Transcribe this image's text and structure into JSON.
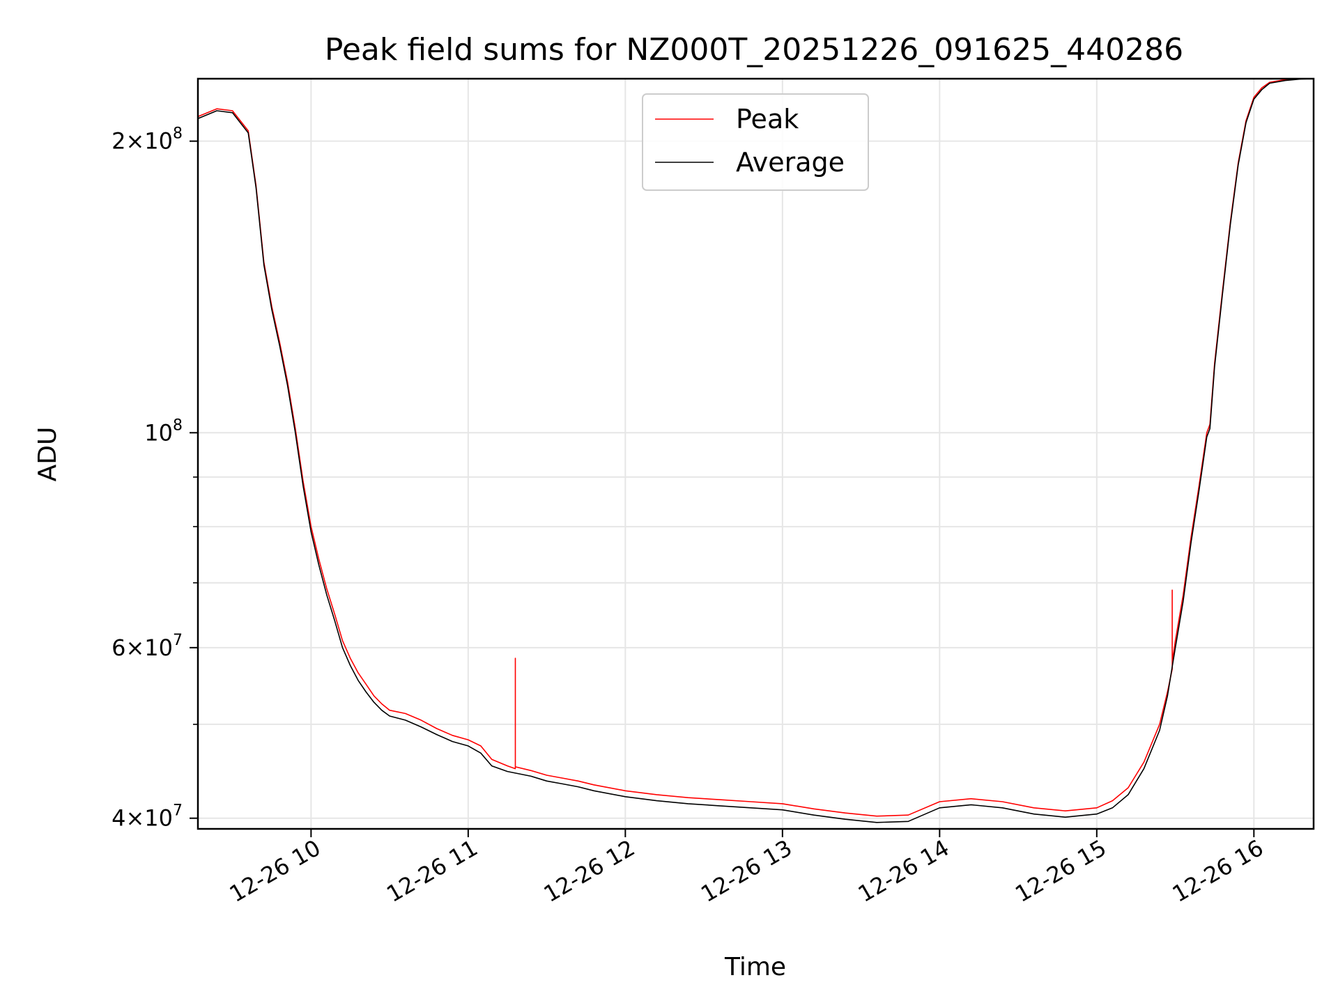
{
  "chart_data": {
    "type": "line",
    "title": "Peak field sums for NZ000T_20251226_091625_440286",
    "xlabel": "Time",
    "ylabel": "ADU",
    "yscale": "log",
    "grid": true,
    "legend_position": "top-center",
    "xlim": [
      9.28,
      16.38
    ],
    "ylim": [
      39000000,
      232000000
    ],
    "x_unit": "hours since 2025-12-26 00:00",
    "x_ticks": [
      {
        "value": 10,
        "label": "12-26 10"
      },
      {
        "value": 11,
        "label": "12-26 11"
      },
      {
        "value": 12,
        "label": "12-26 12"
      },
      {
        "value": 13,
        "label": "12-26 13"
      },
      {
        "value": 14,
        "label": "12-26 14"
      },
      {
        "value": 15,
        "label": "12-26 15"
      },
      {
        "value": 16,
        "label": "12-26 16"
      }
    ],
    "y_ticks": [
      {
        "value": 40000000,
        "mantissa": "4",
        "exponent": "7"
      },
      {
        "value": 60000000,
        "mantissa": "6",
        "exponent": "7"
      },
      {
        "value": 100000000,
        "mantissa": "",
        "exponent": "8"
      },
      {
        "value": 200000000,
        "mantissa": "2",
        "exponent": "8"
      }
    ],
    "y_minor_ticks": [
      50000000,
      70000000,
      80000000,
      90000000
    ],
    "series": [
      {
        "name": "Peak",
        "color": "#ff0000",
        "x": [
          9.28,
          9.4,
          9.5,
          9.6,
          9.65,
          9.7,
          9.75,
          9.8,
          9.85,
          9.9,
          9.95,
          10.0,
          10.05,
          10.1,
          10.15,
          10.2,
          10.25,
          10.3,
          10.35,
          10.4,
          10.45,
          10.5,
          10.6,
          10.7,
          10.8,
          10.9,
          11.0,
          11.08,
          11.15,
          11.25,
          11.3,
          11.3,
          11.3,
          11.4,
          11.5,
          11.6,
          11.7,
          11.8,
          12.0,
          12.2,
          12.4,
          12.6,
          12.8,
          13.0,
          13.2,
          13.4,
          13.6,
          13.8,
          14.0,
          14.2,
          14.4,
          14.6,
          14.8,
          15.0,
          15.1,
          15.2,
          15.3,
          15.4,
          15.45,
          15.48,
          15.48,
          15.48,
          15.5,
          15.55,
          15.6,
          15.65,
          15.7,
          15.72,
          15.75,
          15.8,
          15.85,
          15.9,
          15.95,
          16.0,
          16.05,
          16.1,
          16.2,
          16.3,
          16.38
        ],
        "values": [
          212000000,
          216000000,
          215000000,
          205000000,
          180000000,
          150000000,
          135000000,
          124000000,
          113000000,
          101000000,
          89000000,
          80000000,
          74000000,
          69000000,
          65000000,
          61000000,
          58500000,
          56500000,
          55000000,
          53500000,
          52500000,
          51700000,
          51300000,
          50500000,
          49500000,
          48700000,
          48200000,
          47500000,
          46000000,
          45300000,
          45000000,
          58500000,
          45200000,
          44800000,
          44300000,
          44000000,
          43700000,
          43300000,
          42700000,
          42300000,
          42000000,
          41800000,
          41600000,
          41400000,
          40900000,
          40500000,
          40200000,
          40300000,
          41600000,
          41900000,
          41600000,
          41000000,
          40700000,
          41000000,
          41700000,
          43000000,
          45700000,
          50000000,
          54000000,
          57000000,
          68800000,
          58000000,
          61000000,
          68000000,
          78000000,
          88000000,
          100000000,
          102000000,
          118000000,
          140000000,
          165000000,
          190000000,
          210000000,
          222000000,
          227000000,
          230000000,
          231500000,
          232000000,
          232000000
        ]
      },
      {
        "name": "Average",
        "color": "#000000",
        "x": [
          9.28,
          9.4,
          9.5,
          9.6,
          9.65,
          9.7,
          9.75,
          9.8,
          9.85,
          9.9,
          9.95,
          10.0,
          10.05,
          10.1,
          10.15,
          10.2,
          10.25,
          10.3,
          10.35,
          10.4,
          10.45,
          10.5,
          10.6,
          10.7,
          10.8,
          10.9,
          11.0,
          11.08,
          11.15,
          11.25,
          11.4,
          11.5,
          11.6,
          11.7,
          11.8,
          12.0,
          12.2,
          12.4,
          12.6,
          12.8,
          13.0,
          13.2,
          13.4,
          13.6,
          13.8,
          14.0,
          14.2,
          14.4,
          14.6,
          14.8,
          15.0,
          15.1,
          15.2,
          15.3,
          15.4,
          15.45,
          15.5,
          15.55,
          15.6,
          15.65,
          15.7,
          15.72,
          15.75,
          15.8,
          15.85,
          15.9,
          15.95,
          16.0,
          16.05,
          16.1,
          16.2,
          16.3,
          16.38
        ],
        "values": [
          211000000,
          215000000,
          214000000,
          204000000,
          179000000,
          149000000,
          134000000,
          123000000,
          112000000,
          100000000,
          88000000,
          79000000,
          73000000,
          68000000,
          64000000,
          60000000,
          57500000,
          55500000,
          54000000,
          52700000,
          51700000,
          51000000,
          50500000,
          49700000,
          48800000,
          48000000,
          47500000,
          46700000,
          45300000,
          44700000,
          44200000,
          43700000,
          43400000,
          43100000,
          42700000,
          42100000,
          41700000,
          41400000,
          41200000,
          41000000,
          40800000,
          40300000,
          39900000,
          39600000,
          39700000,
          41000000,
          41300000,
          41000000,
          40400000,
          40100000,
          40400000,
          41000000,
          42300000,
          45000000,
          49300000,
          53500000,
          60000000,
          67000000,
          77000000,
          87000000,
          99000000,
          101000000,
          117000000,
          139000000,
          164000000,
          189000000,
          209000000,
          221000000,
          226000000,
          229500000,
          231000000,
          231800000,
          232000000
        ]
      }
    ]
  }
}
